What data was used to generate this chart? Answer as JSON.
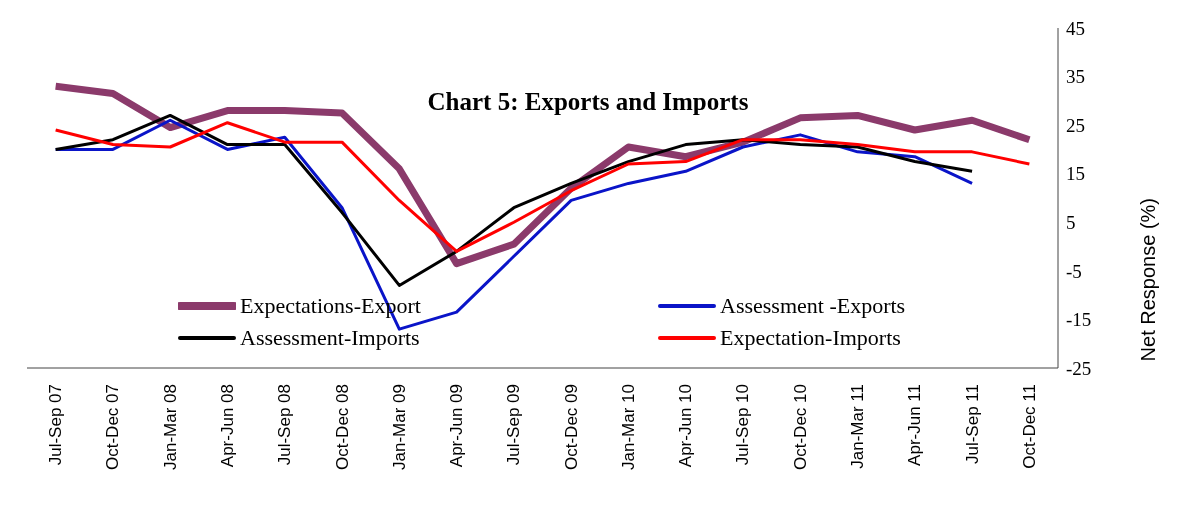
{
  "chart_data": {
    "type": "line",
    "title": "Chart 5: Exports and Imports",
    "ylabel": "Net Response (%)",
    "categories": [
      "Jul-Sep 07",
      "Oct-Dec 07",
      "Jan-Mar 08",
      "Apr-Jun 08",
      "Jul-Sep 08",
      "Oct-Dec 08",
      "Jan-Mar 09",
      "Apr-Jun 09",
      "Jul-Sep 09",
      "Oct-Dec 09",
      "Jan-Mar 10",
      "Apr-Jun 10",
      "Jul-Sep 10",
      "Oct-Dec 10",
      "Jan-Mar 11",
      "Apr-Jun 11",
      "Jul-Sep 11",
      "Oct-Dec 11"
    ],
    "series": [
      {
        "name": "Expectations-Export",
        "color": "#8b3a6b",
        "values": [
          33,
          31.5,
          24.5,
          28,
          28,
          27.5,
          16,
          -3.5,
          0.5,
          12,
          20.5,
          18.5,
          21.5,
          26.5,
          27,
          24,
          26,
          22
        ]
      },
      {
        "name": "Assessment -Exports",
        "color": "#0a14c8",
        "values": [
          20,
          20,
          26,
          20,
          22.5,
          8,
          -17,
          -13.5,
          -2,
          9.5,
          13,
          15.5,
          20.5,
          23,
          19.5,
          18.5,
          13,
          null
        ]
      },
      {
        "name": "Assessment-Imports",
        "color": "#000000",
        "values": [
          20,
          22,
          27,
          21,
          21,
          7,
          -8,
          -1,
          8,
          13,
          17.5,
          21,
          22,
          21,
          20.5,
          17.5,
          15.5,
          null
        ]
      },
      {
        "name": "Expectation-Imports",
        "color": "#ff0000",
        "values": [
          24,
          21,
          20.5,
          25.5,
          21.5,
          21.5,
          9.5,
          -1,
          5,
          11.5,
          17,
          17.5,
          22,
          22,
          21,
          19.5,
          19.5,
          17
        ]
      }
    ],
    "ylim": [
      -25,
      45
    ],
    "yticks": [
      -25,
      -15,
      -5,
      5,
      15,
      25,
      35,
      45
    ],
    "grid": false,
    "legend": "bottom",
    "marker": "none",
    "line_style": "solid"
  }
}
